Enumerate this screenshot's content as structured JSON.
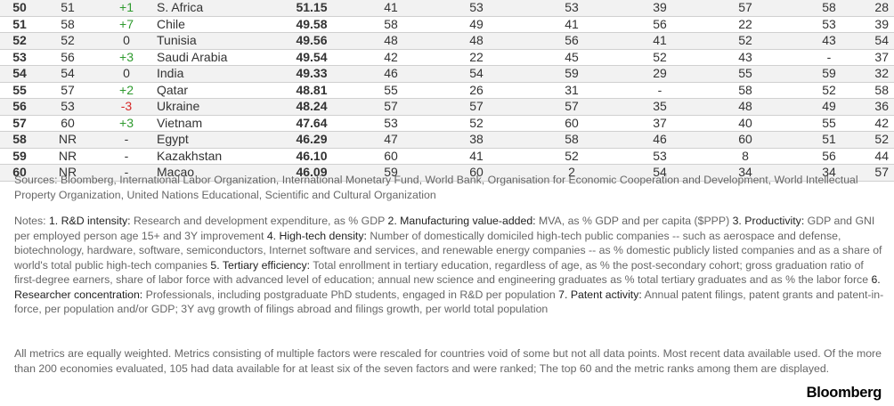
{
  "rows": [
    {
      "rank": "50",
      "prev": "51",
      "change": "+1",
      "country": "S. Africa",
      "score": "51.15",
      "m1": "41",
      "m2": "53",
      "m3": "53",
      "m4": "39",
      "m5": "57",
      "m6": "58",
      "m7": "28"
    },
    {
      "rank": "51",
      "prev": "58",
      "change": "+7",
      "country": "Chile",
      "score": "49.58",
      "m1": "58",
      "m2": "49",
      "m3": "41",
      "m4": "56",
      "m5": "22",
      "m6": "53",
      "m7": "39"
    },
    {
      "rank": "52",
      "prev": "52",
      "change": "0",
      "country": "Tunisia",
      "score": "49.56",
      "m1": "48",
      "m2": "48",
      "m3": "56",
      "m4": "41",
      "m5": "52",
      "m6": "43",
      "m7": "54"
    },
    {
      "rank": "53",
      "prev": "56",
      "change": "+3",
      "country": "Saudi Arabia",
      "score": "49.54",
      "m1": "42",
      "m2": "22",
      "m3": "45",
      "m4": "52",
      "m5": "43",
      "m6": "-",
      "m7": "37"
    },
    {
      "rank": "54",
      "prev": "54",
      "change": "0",
      "country": "India",
      "score": "49.33",
      "m1": "46",
      "m2": "54",
      "m3": "59",
      "m4": "29",
      "m5": "55",
      "m6": "59",
      "m7": "32"
    },
    {
      "rank": "55",
      "prev": "57",
      "change": "+2",
      "country": "Qatar",
      "score": "48.81",
      "m1": "55",
      "m2": "26",
      "m3": "31",
      "m4": "-",
      "m5": "58",
      "m6": "52",
      "m7": "58"
    },
    {
      "rank": "56",
      "prev": "53",
      "change": "-3",
      "country": "Ukraine",
      "score": "48.24",
      "m1": "57",
      "m2": "57",
      "m3": "57",
      "m4": "35",
      "m5": "48",
      "m6": "49",
      "m7": "36"
    },
    {
      "rank": "57",
      "prev": "60",
      "change": "+3",
      "country": "Vietnam",
      "score": "47.64",
      "m1": "53",
      "m2": "52",
      "m3": "60",
      "m4": "37",
      "m5": "40",
      "m6": "55",
      "m7": "42"
    },
    {
      "rank": "58",
      "prev": "NR",
      "change": "-",
      "country": "Egypt",
      "score": "46.29",
      "m1": "47",
      "m2": "38",
      "m3": "58",
      "m4": "46",
      "m5": "60",
      "m6": "51",
      "m7": "52"
    },
    {
      "rank": "59",
      "prev": "NR",
      "change": "-",
      "country": "Kazakhstan",
      "score": "46.10",
      "m1": "60",
      "m2": "41",
      "m3": "52",
      "m4": "53",
      "m5": "8",
      "m6": "56",
      "m7": "44"
    },
    {
      "rank": "60",
      "prev": "NR",
      "change": "-",
      "country": "Macao",
      "score": "46.09",
      "m1": "59",
      "m2": "60",
      "m3": "2",
      "m4": "54",
      "m5": "34",
      "m6": "34",
      "m7": "57"
    }
  ],
  "sources": "Sources: Bloomberg, International Labor Organization, International Monetary Fund, World Bank, Organisation for Economic Cooperation and Development, World Intellectual Property Organization, United Nations Educational, Scientific and Cultural Organization",
  "notes": {
    "prefix": "Notes: ",
    "items": [
      {
        "label": "1. R&D intensity:",
        "text": " Research and development expenditure, as % GDP "
      },
      {
        "label": "2. Manufacturing value-added:",
        "text": " MVA, as % GDP and per capita ($PPP) "
      },
      {
        "label": "3. Productivity:",
        "text": " GDP and GNI per employed person age 15+ and 3Y improvement "
      },
      {
        "label": "4. High-tech density:",
        "text": " Number of domestically domiciled high-tech public companies -- such as aerospace and defense, biotechnology, hardware, software, semiconductors, Internet software and services, and renewable energy companies -- as % domestic publicly listed companies and as a share of world's total public high-tech companies "
      },
      {
        "label": "5. Tertiary efficiency:",
        "text": " Total enrollment in tertiary education, regardless of age, as % the post-secondary cohort; gross graduation ratio of first-degree earners, share of labor force with advanced level of education; annual new science and engineering graduates as % total tertiary graduates and as % the labor force "
      },
      {
        "label": "6. Researcher concentration:",
        "text": " Professionals, including postgraduate PhD students, engaged in R&D per population "
      },
      {
        "label": "7. Patent activity:",
        "text": " Annual patent filings, patent grants and patent-in-force, per population and/or GDP; 3Y avg growth of filings abroad and filings growth, per world total population"
      }
    ]
  },
  "methodology": "All metrics are equally weighted. Metrics consisting of multiple factors were rescaled for countries void of some but not all data points. Most recent data available used. Of the more than 200 economies evaluated, 105 had data available for at least six of the seven factors and were ranked; The top 60 and the metric ranks among them are displayed.",
  "logo": "Bloomberg",
  "colors": {
    "positive": "#2e9a2e",
    "negative": "#d62828",
    "row_alt": "#f2f2f2"
  }
}
